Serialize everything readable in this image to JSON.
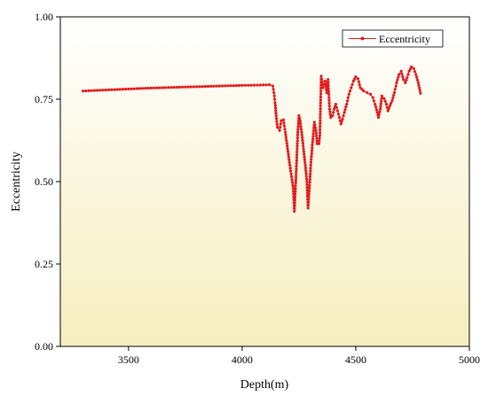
{
  "chart_data": {
    "type": "line",
    "xlabel": "Depth(m)",
    "ylabel": "Eccentricity",
    "xlim": [
      3200,
      5000
    ],
    "ylim": [
      0.0,
      1.0
    ],
    "xticks": [
      3500,
      4000,
      4500,
      5000
    ],
    "yticks": [
      0.0,
      0.25,
      0.5,
      0.75,
      1.0
    ],
    "xtick_labels": [
      "3500",
      "4000",
      "4500",
      "5000"
    ],
    "ytick_labels": [
      "0.00",
      "0.25",
      "0.50",
      "0.75",
      "1.00"
    ],
    "grid": false,
    "legend_position": "top-right",
    "background": "gradient white to pale yellow (top to bottom)",
    "series": [
      {
        "name": "Eccentricity",
        "color": "#e31a1c",
        "marker": "circle",
        "points": [
          [
            3300,
            0.775
          ],
          [
            3400,
            0.778
          ],
          [
            3500,
            0.781
          ],
          [
            3600,
            0.784
          ],
          [
            3700,
            0.786
          ],
          [
            3800,
            0.788
          ],
          [
            3900,
            0.79
          ],
          [
            4000,
            0.792
          ],
          [
            4080,
            0.793
          ],
          [
            4120,
            0.794
          ],
          [
            4135,
            0.79
          ],
          [
            4140,
            0.77
          ],
          [
            4145,
            0.74
          ],
          [
            4150,
            0.7
          ],
          [
            4155,
            0.665
          ],
          [
            4165,
            0.655
          ],
          [
            4172,
            0.685
          ],
          [
            4182,
            0.687
          ],
          [
            4190,
            0.65
          ],
          [
            4200,
            0.6
          ],
          [
            4210,
            0.55
          ],
          [
            4225,
            0.48
          ],
          [
            4230,
            0.41
          ],
          [
            4238,
            0.53
          ],
          [
            4245,
            0.65
          ],
          [
            4250,
            0.7
          ],
          [
            4255,
            0.685
          ],
          [
            4262,
            0.65
          ],
          [
            4270,
            0.6
          ],
          [
            4278,
            0.55
          ],
          [
            4285,
            0.5
          ],
          [
            4290,
            0.42
          ],
          [
            4296,
            0.48
          ],
          [
            4302,
            0.55
          ],
          [
            4310,
            0.62
          ],
          [
            4318,
            0.68
          ],
          [
            4325,
            0.655
          ],
          [
            4330,
            0.615
          ],
          [
            4338,
            0.615
          ],
          [
            4342,
            0.64
          ],
          [
            4348,
            0.82
          ],
          [
            4356,
            0.785
          ],
          [
            4365,
            0.805
          ],
          [
            4372,
            0.77
          ],
          [
            4378,
            0.81
          ],
          [
            4385,
            0.72
          ],
          [
            4390,
            0.695
          ],
          [
            4398,
            0.7
          ],
          [
            4405,
            0.72
          ],
          [
            4412,
            0.735
          ],
          [
            4420,
            0.715
          ],
          [
            4428,
            0.695
          ],
          [
            4435,
            0.675
          ],
          [
            4442,
            0.69
          ],
          [
            4450,
            0.71
          ],
          [
            4460,
            0.735
          ],
          [
            4470,
            0.765
          ],
          [
            4480,
            0.785
          ],
          [
            4490,
            0.805
          ],
          [
            4500,
            0.818
          ],
          [
            4510,
            0.812
          ],
          [
            4520,
            0.785
          ],
          [
            4535,
            0.775
          ],
          [
            4550,
            0.77
          ],
          [
            4565,
            0.765
          ],
          [
            4575,
            0.755
          ],
          [
            4585,
            0.735
          ],
          [
            4595,
            0.71
          ],
          [
            4600,
            0.695
          ],
          [
            4608,
            0.72
          ],
          [
            4615,
            0.76
          ],
          [
            4625,
            0.752
          ],
          [
            4635,
            0.735
          ],
          [
            4642,
            0.715
          ],
          [
            4650,
            0.73
          ],
          [
            4660,
            0.745
          ],
          [
            4670,
            0.77
          ],
          [
            4680,
            0.8
          ],
          [
            4690,
            0.825
          ],
          [
            4700,
            0.835
          ],
          [
            4710,
            0.81
          ],
          [
            4718,
            0.8
          ],
          [
            4726,
            0.815
          ],
          [
            4735,
            0.835
          ],
          [
            4745,
            0.848
          ],
          [
            4755,
            0.843
          ],
          [
            4765,
            0.825
          ],
          [
            4775,
            0.8
          ],
          [
            4785,
            0.768
          ]
        ]
      }
    ]
  }
}
